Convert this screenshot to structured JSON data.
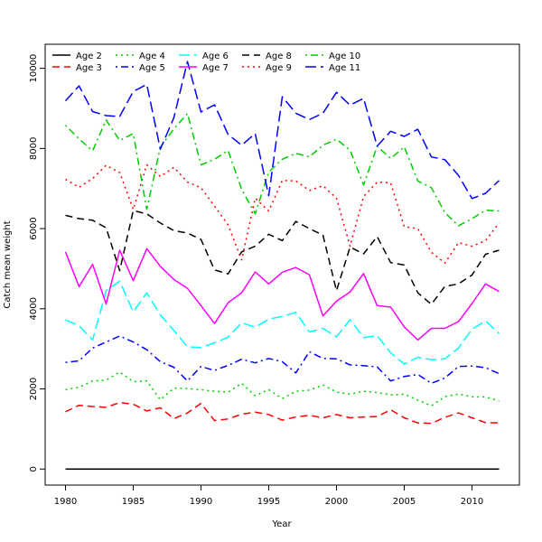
{
  "chart_data": {
    "type": "line",
    "xlabel": "Year",
    "ylabel": "Catch mean weight",
    "xlim": [
      1978.5,
      2013.5
    ],
    "ylim": [
      -400,
      10600
    ],
    "x_ticks": [
      1980,
      1985,
      1990,
      1995,
      2000,
      2005,
      2010
    ],
    "y_ticks": [
      0,
      2000,
      4000,
      6000,
      8000,
      10000
    ],
    "grid": false,
    "legend_position": "top-left",
    "x": [
      1980,
      1981,
      1982,
      1983,
      1984,
      1985,
      1986,
      1987,
      1988,
      1989,
      1990,
      1991,
      1992,
      1993,
      1994,
      1995,
      1996,
      1997,
      1998,
      1999,
      2000,
      2001,
      2002,
      2003,
      2004,
      2005,
      2006,
      2007,
      2008,
      2009,
      2010,
      2011,
      2012
    ],
    "series": [
      {
        "name": "Age 2",
        "color": "#000000",
        "dash": "solid",
        "values": [
          0,
          0,
          0,
          0,
          0,
          0,
          0,
          0,
          0,
          0,
          0,
          0,
          0,
          0,
          0,
          0,
          0,
          0,
          0,
          0,
          0,
          0,
          0,
          0,
          0,
          0,
          0,
          0,
          0,
          0,
          0,
          0,
          0
        ]
      },
      {
        "name": "Age 3",
        "color": "#ff0000",
        "dash": "dashed",
        "values": [
          1430,
          1590,
          1560,
          1540,
          1660,
          1620,
          1450,
          1530,
          1260,
          1400,
          1640,
          1210,
          1250,
          1370,
          1420,
          1360,
          1220,
          1300,
          1340,
          1280,
          1360,
          1280,
          1300,
          1310,
          1480,
          1280,
          1150,
          1140,
          1290,
          1400,
          1280,
          1160,
          1150
        ]
      },
      {
        "name": "Age 4",
        "color": "#00cd00",
        "dash": "dotted",
        "values": [
          1980,
          2040,
          2200,
          2220,
          2420,
          2180,
          2200,
          1730,
          2020,
          2010,
          1980,
          1940,
          1920,
          2140,
          1830,
          1980,
          1760,
          1940,
          1970,
          2100,
          1920,
          1870,
          1940,
          1910,
          1850,
          1870,
          1720,
          1580,
          1810,
          1870,
          1800,
          1800,
          1700
        ]
      },
      {
        "name": "Age 5",
        "color": "#0000ff",
        "dash": "dashdot",
        "values": [
          2660,
          2700,
          3020,
          3170,
          3320,
          3170,
          2980,
          2680,
          2540,
          2200,
          2560,
          2460,
          2590,
          2740,
          2650,
          2760,
          2680,
          2400,
          2930,
          2760,
          2750,
          2600,
          2580,
          2550,
          2200,
          2310,
          2360,
          2140,
          2270,
          2560,
          2570,
          2530,
          2380
        ]
      },
      {
        "name": "Age 6",
        "color": "#00ffff",
        "dash": "longdash",
        "values": [
          3720,
          3580,
          3220,
          4450,
          4690,
          3920,
          4400,
          3850,
          3460,
          3050,
          3030,
          3150,
          3290,
          3650,
          3540,
          3740,
          3810,
          3910,
          3420,
          3510,
          3300,
          3730,
          3280,
          3330,
          2900,
          2620,
          2790,
          2730,
          2750,
          3020,
          3490,
          3700,
          3380
        ]
      },
      {
        "name": "Age 7",
        "color": "#ff00ff",
        "dash": "solid",
        "values": [
          5420,
          4550,
          5110,
          4120,
          5460,
          4700,
          5500,
          5060,
          4730,
          4510,
          4080,
          3630,
          4150,
          4400,
          4920,
          4620,
          4910,
          5030,
          4850,
          3820,
          4190,
          4420,
          4880,
          4080,
          4040,
          3550,
          3220,
          3510,
          3510,
          3680,
          4130,
          4620,
          4430
        ]
      },
      {
        "name": "Age 8",
        "color": "#000000",
        "dash": "dashed",
        "values": [
          6330,
          6250,
          6210,
          6020,
          4950,
          6450,
          6370,
          6140,
          5950,
          5890,
          5730,
          4970,
          4870,
          5420,
          5560,
          5860,
          5700,
          6180,
          6000,
          5840,
          4450,
          5540,
          5370,
          5800,
          5150,
          5090,
          4400,
          4110,
          4560,
          4620,
          4840,
          5360,
          5460
        ]
      },
      {
        "name": "Age 9",
        "color": "#ff0000",
        "dash": "dotted",
        "values": [
          7230,
          7030,
          7250,
          7580,
          7400,
          6480,
          7590,
          7300,
          7530,
          7160,
          7020,
          6560,
          6090,
          5220,
          6760,
          6440,
          7200,
          7190,
          6950,
          7070,
          6760,
          5560,
          6800,
          7160,
          7140,
          6050,
          6000,
          5410,
          5140,
          5650,
          5560,
          5700,
          6140
        ]
      },
      {
        "name": "Age 10",
        "color": "#00cd00",
        "dash": "dashdot",
        "values": [
          8580,
          8240,
          7940,
          8710,
          8200,
          8370,
          6480,
          8030,
          8490,
          8870,
          7590,
          7730,
          7950,
          6980,
          6370,
          7410,
          7730,
          7880,
          7790,
          8080,
          8230,
          7960,
          7090,
          8050,
          7750,
          8040,
          7190,
          7020,
          6400,
          6070,
          6250,
          6460,
          6440
        ]
      },
      {
        "name": "Age 11",
        "color": "#0000ff",
        "dash": "longdash",
        "values": [
          9190,
          9560,
          8920,
          8820,
          8800,
          9420,
          9600,
          7980,
          8770,
          10170,
          8910,
          9090,
          8350,
          8080,
          8370,
          6820,
          9290,
          8880,
          8720,
          8880,
          9400,
          9080,
          9250,
          8060,
          8430,
          8300,
          8480,
          7790,
          7720,
          7330,
          6750,
          6880,
          7200
        ]
      }
    ]
  }
}
